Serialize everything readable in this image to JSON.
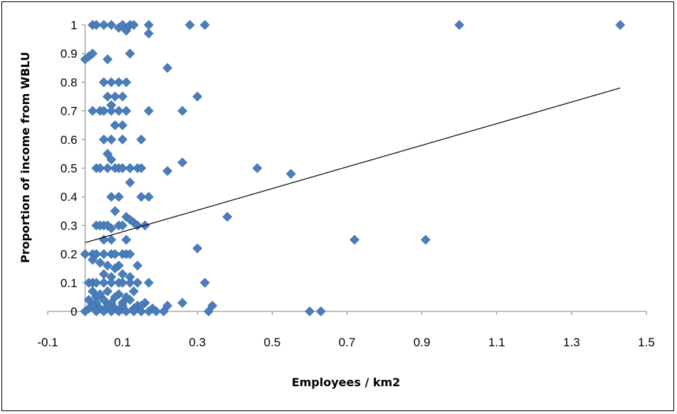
{
  "chart_data": {
    "type": "scatter",
    "title": "",
    "xlabel": "Employees / km2",
    "ylabel": "Proportion of income from WBLU",
    "xlim": [
      -0.1,
      1.5
    ],
    "ylim": [
      0,
      1
    ],
    "xticks": [
      "-0.1",
      "0.1",
      "0.3",
      "0.5",
      "0.7",
      "0.9",
      "1.1",
      "1.3",
      "1.5"
    ],
    "yticks": [
      "0",
      "0.1",
      "0.2",
      "0.3",
      "0.4",
      "0.5",
      "0.6",
      "0.7",
      "0.8",
      "0.9",
      "1"
    ],
    "grid": false,
    "legend": "none",
    "marker_color": "#4a7ebb",
    "trendline": {
      "type": "linear",
      "x": [
        0.0,
        1.43
      ],
      "y": [
        0.24,
        0.78
      ],
      "color": "#000000"
    },
    "series": [
      {
        "points": [
          [
            0.02,
            1
          ],
          [
            0.03,
            1
          ],
          [
            0.05,
            1
          ],
          [
            0.07,
            1
          ],
          [
            0.09,
            0.99
          ],
          [
            0.1,
            1
          ],
          [
            0.11,
            0.98
          ],
          [
            0.12,
            1
          ],
          [
            0.13,
            1
          ],
          [
            0.17,
            1
          ],
          [
            0.17,
            0.97
          ],
          [
            0.28,
            1
          ],
          [
            0.32,
            1
          ],
          [
            1.0,
            1
          ],
          [
            1.43,
            1
          ],
          [
            0.0,
            0.88
          ],
          [
            0.01,
            0.89
          ],
          [
            0.02,
            0.9
          ],
          [
            0.06,
            0.88
          ],
          [
            0.12,
            0.9
          ],
          [
            0.05,
            0.8
          ],
          [
            0.07,
            0.8
          ],
          [
            0.09,
            0.8
          ],
          [
            0.11,
            0.8
          ],
          [
            0.22,
            0.85
          ],
          [
            0.06,
            0.75
          ],
          [
            0.08,
            0.75
          ],
          [
            0.1,
            0.75
          ],
          [
            0.07,
            0.72
          ],
          [
            0.3,
            0.75
          ],
          [
            0.02,
            0.7
          ],
          [
            0.04,
            0.7
          ],
          [
            0.05,
            0.7
          ],
          [
            0.07,
            0.7
          ],
          [
            0.09,
            0.7
          ],
          [
            0.11,
            0.7
          ],
          [
            0.17,
            0.7
          ],
          [
            0.26,
            0.7
          ],
          [
            0.08,
            0.65
          ],
          [
            0.1,
            0.65
          ],
          [
            0.05,
            0.6
          ],
          [
            0.07,
            0.6
          ],
          [
            0.1,
            0.6
          ],
          [
            0.15,
            0.6
          ],
          [
            0.06,
            0.55
          ],
          [
            0.07,
            0.53
          ],
          [
            0.26,
            0.52
          ],
          [
            0.03,
            0.5
          ],
          [
            0.04,
            0.5
          ],
          [
            0.06,
            0.5
          ],
          [
            0.08,
            0.5
          ],
          [
            0.09,
            0.5
          ],
          [
            0.1,
            0.5
          ],
          [
            0.12,
            0.5
          ],
          [
            0.14,
            0.5
          ],
          [
            0.15,
            0.5
          ],
          [
            0.22,
            0.49
          ],
          [
            0.46,
            0.5
          ],
          [
            0.55,
            0.48
          ],
          [
            0.12,
            0.45
          ],
          [
            0.07,
            0.4
          ],
          [
            0.09,
            0.4
          ],
          [
            0.15,
            0.4
          ],
          [
            0.17,
            0.4
          ],
          [
            0.08,
            0.35
          ],
          [
            0.38,
            0.33
          ],
          [
            0.11,
            0.33
          ],
          [
            0.12,
            0.32
          ],
          [
            0.13,
            0.31
          ],
          [
            0.03,
            0.3
          ],
          [
            0.04,
            0.3
          ],
          [
            0.05,
            0.3
          ],
          [
            0.06,
            0.3
          ],
          [
            0.07,
            0.29
          ],
          [
            0.09,
            0.3
          ],
          [
            0.1,
            0.3
          ],
          [
            0.14,
            0.3
          ],
          [
            0.16,
            0.3
          ],
          [
            0.05,
            0.25
          ],
          [
            0.07,
            0.25
          ],
          [
            0.11,
            0.25
          ],
          [
            0.72,
            0.25
          ],
          [
            0.91,
            0.25
          ],
          [
            0.3,
            0.22
          ],
          [
            0.0,
            0.2
          ],
          [
            0.02,
            0.2
          ],
          [
            0.03,
            0.2
          ],
          [
            0.05,
            0.2
          ],
          [
            0.07,
            0.2
          ],
          [
            0.08,
            0.2
          ],
          [
            0.1,
            0.2
          ],
          [
            0.11,
            0.2
          ],
          [
            0.12,
            0.2
          ],
          [
            0.02,
            0.18
          ],
          [
            0.04,
            0.17
          ],
          [
            0.06,
            0.16
          ],
          [
            0.08,
            0.15
          ],
          [
            0.09,
            0.16
          ],
          [
            0.14,
            0.16
          ],
          [
            0.05,
            0.13
          ],
          [
            0.07,
            0.12
          ],
          [
            0.1,
            0.13
          ],
          [
            0.12,
            0.12
          ],
          [
            0.01,
            0.1
          ],
          [
            0.02,
            0.1
          ],
          [
            0.03,
            0.1
          ],
          [
            0.05,
            0.1
          ],
          [
            0.07,
            0.1
          ],
          [
            0.09,
            0.1
          ],
          [
            0.1,
            0.1
          ],
          [
            0.12,
            0.1
          ],
          [
            0.14,
            0.1
          ],
          [
            0.17,
            0.1
          ],
          [
            0.32,
            0.1
          ],
          [
            0.02,
            0.07
          ],
          [
            0.04,
            0.06
          ],
          [
            0.06,
            0.07
          ],
          [
            0.09,
            0.06
          ],
          [
            0.11,
            0.05
          ],
          [
            0.13,
            0.07
          ],
          [
            0.03,
            0.05
          ],
          [
            0.08,
            0.05
          ],
          [
            0.01,
            0.04
          ],
          [
            0.03,
            0.03
          ],
          [
            0.05,
            0.04
          ],
          [
            0.07,
            0.03
          ],
          [
            0.1,
            0.03
          ],
          [
            0.12,
            0.04
          ],
          [
            0.14,
            0.02
          ],
          [
            0.16,
            0.03
          ],
          [
            0.01,
            0.01
          ],
          [
            0.02,
            0.02
          ],
          [
            0.04,
            0.01
          ],
          [
            0.06,
            0.02
          ],
          [
            0.08,
            0.01
          ],
          [
            0.1,
            0.02
          ],
          [
            0.13,
            0.01
          ],
          [
            0.15,
            0.02
          ],
          [
            0.18,
            0.01
          ],
          [
            0.22,
            0.02
          ],
          [
            0.26,
            0.03
          ],
          [
            0.34,
            0.02
          ],
          [
            0.0,
            0.0
          ],
          [
            0.03,
            0.0
          ],
          [
            0.05,
            0.0
          ],
          [
            0.07,
            0.0
          ],
          [
            0.09,
            0.0
          ],
          [
            0.11,
            0.0
          ],
          [
            0.13,
            0.0
          ],
          [
            0.15,
            0.0
          ],
          [
            0.17,
            0.0
          ],
          [
            0.19,
            0.0
          ],
          [
            0.21,
            0.0
          ],
          [
            0.33,
            0.0
          ],
          [
            0.6,
            0.0
          ],
          [
            0.63,
            0.0
          ]
        ]
      }
    ]
  }
}
